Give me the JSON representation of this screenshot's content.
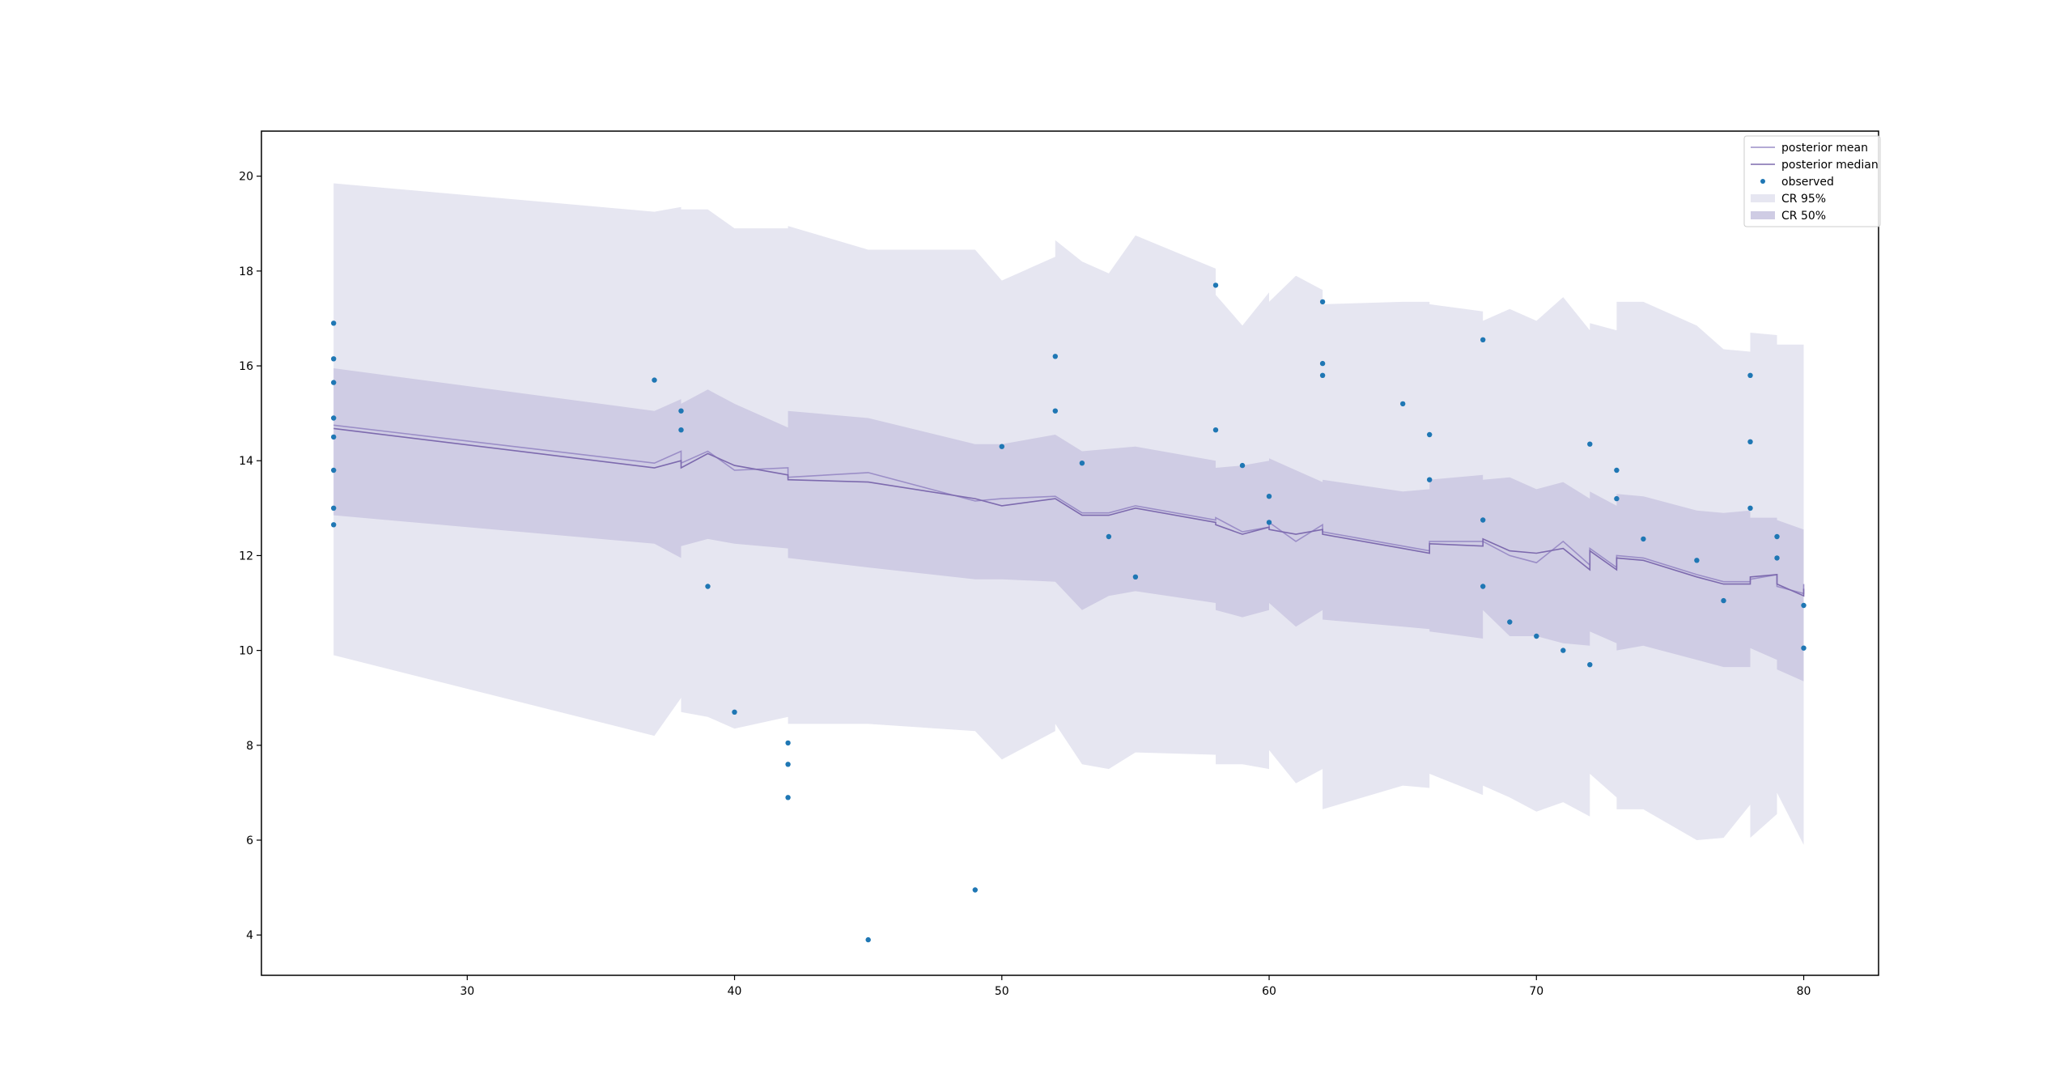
{
  "chart_data": {
    "type": "line",
    "title": "",
    "xlabel": "",
    "ylabel": "",
    "xlim": [
      22.3,
      82.8
    ],
    "ylim": [
      3.15,
      20.95
    ],
    "xticks": [
      30,
      40,
      50,
      60,
      70,
      80
    ],
    "yticks": [
      4,
      6,
      8,
      10,
      12,
      14,
      16,
      18,
      20
    ],
    "grid": false,
    "legend_position": "top-right",
    "colors": {
      "mean": "#9b8ec7",
      "median": "#7d6aae",
      "observed": "#1f77b4",
      "cr95": "#e6e6f1",
      "cr50": "#cfcce4"
    },
    "legend": [
      "posterior mean",
      "posterior median",
      "observed",
      "CR 95%",
      "CR 50%"
    ],
    "series": [
      {
        "name": "posterior mean",
        "x": [
          25,
          37,
          38,
          38,
          39,
          40,
          42,
          42,
          45,
          49,
          50,
          52,
          53,
          54,
          55,
          58,
          58,
          59,
          60,
          60,
          61,
          62,
          62,
          65,
          66,
          66,
          68,
          68,
          69,
          70,
          71,
          72,
          72,
          73,
          73,
          74,
          76,
          77,
          78,
          78,
          79,
          79,
          80,
          80
        ],
        "y": [
          14.75,
          13.95,
          14.2,
          13.95,
          14.2,
          13.8,
          13.85,
          13.65,
          13.75,
          13.15,
          13.2,
          13.25,
          12.9,
          12.9,
          13.05,
          12.75,
          12.8,
          12.5,
          12.6,
          12.7,
          12.3,
          12.65,
          12.5,
          12.2,
          12.1,
          12.3,
          12.3,
          12.3,
          12.0,
          11.85,
          12.3,
          11.8,
          12.15,
          11.75,
          12.0,
          11.95,
          11.6,
          11.45,
          11.45,
          11.5,
          11.6,
          11.35,
          11.2,
          11.4
        ]
      },
      {
        "name": "posterior median",
        "x": [
          25,
          37,
          38,
          38,
          39,
          40,
          42,
          42,
          45,
          49,
          50,
          52,
          53,
          54,
          55,
          58,
          58,
          59,
          60,
          60,
          61,
          62,
          62,
          65,
          66,
          66,
          68,
          68,
          69,
          70,
          71,
          72,
          72,
          73,
          73,
          74,
          76,
          77,
          78,
          78,
          79,
          79,
          80,
          80
        ],
        "y": [
          14.68,
          13.85,
          14.0,
          13.85,
          14.15,
          13.9,
          13.7,
          13.6,
          13.55,
          13.2,
          13.05,
          13.2,
          12.85,
          12.85,
          13.0,
          12.7,
          12.65,
          12.45,
          12.6,
          12.55,
          12.45,
          12.55,
          12.45,
          12.15,
          12.05,
          12.25,
          12.2,
          12.35,
          12.1,
          12.05,
          12.15,
          11.7,
          12.1,
          11.7,
          11.95,
          11.9,
          11.55,
          11.4,
          11.4,
          11.55,
          11.6,
          11.4,
          11.15,
          11.3
        ]
      },
      {
        "name": "observed",
        "x": [
          25,
          25,
          25,
          25,
          25,
          25,
          25,
          25,
          37,
          38,
          38,
          39,
          40,
          42,
          42,
          42,
          45,
          49,
          50,
          52,
          52,
          53,
          54,
          55,
          58,
          58,
          59,
          60,
          60,
          62,
          62,
          62,
          65,
          66,
          66,
          68,
          68,
          68,
          69,
          70,
          71,
          72,
          72,
          73,
          73,
          74,
          76,
          77,
          78,
          78,
          78,
          79,
          79,
          80,
          80
        ],
        "y": [
          16.9,
          16.15,
          15.65,
          14.9,
          14.5,
          13.8,
          13.0,
          12.65,
          15.7,
          15.05,
          14.65,
          11.35,
          8.7,
          8.05,
          7.6,
          6.9,
          3.9,
          4.95,
          14.3,
          16.2,
          15.05,
          13.95,
          12.4,
          11.55,
          17.7,
          14.65,
          13.9,
          13.25,
          12.7,
          17.35,
          16.05,
          15.8,
          15.2,
          14.55,
          13.6,
          16.55,
          12.75,
          11.35,
          10.6,
          10.3,
          10.0,
          9.7,
          14.35,
          13.8,
          13.2,
          12.35,
          11.9,
          11.05,
          15.8,
          14.4,
          13.0,
          12.4,
          11.95,
          10.95,
          10.05
        ]
      }
    ],
    "bands": [
      {
        "name": "CR 95%",
        "x": [
          25,
          37,
          38,
          38,
          39,
          40,
          42,
          42,
          45,
          49,
          50,
          52,
          52,
          53,
          54,
          55,
          58,
          58,
          59,
          60,
          60,
          61,
          62,
          62,
          65,
          66,
          66,
          68,
          68,
          69,
          70,
          71,
          72,
          72,
          73,
          73,
          74,
          76,
          77,
          78,
          78,
          79,
          79,
          80
        ],
        "upper": [
          19.85,
          19.25,
          19.35,
          19.3,
          19.3,
          18.9,
          18.9,
          18.95,
          18.45,
          18.45,
          17.8,
          18.3,
          18.65,
          18.2,
          17.95,
          18.75,
          18.05,
          17.5,
          16.85,
          17.55,
          17.35,
          17.9,
          17.6,
          17.3,
          17.35,
          17.35,
          17.3,
          17.15,
          16.95,
          17.2,
          16.95,
          17.45,
          16.75,
          16.9,
          16.75,
          17.35,
          17.35,
          16.85,
          16.35,
          16.3,
          16.7,
          16.65,
          16.45,
          16.45
        ],
        "lower": [
          9.9,
          8.2,
          9.0,
          8.7,
          8.6,
          8.35,
          8.6,
          8.45,
          8.45,
          8.3,
          7.7,
          8.3,
          8.45,
          7.6,
          7.5,
          7.85,
          7.8,
          7.6,
          7.6,
          7.5,
          7.9,
          7.2,
          7.5,
          6.65,
          7.15,
          7.1,
          7.4,
          6.95,
          7.15,
          6.9,
          6.6,
          6.8,
          6.5,
          7.4,
          6.9,
          6.65,
          6.65,
          6.0,
          6.05,
          6.75,
          6.05,
          6.55,
          7.0,
          5.9
        ]
      },
      {
        "name": "CR 50%",
        "x": [
          25,
          37,
          38,
          38,
          39,
          40,
          42,
          42,
          45,
          49,
          50,
          52,
          53,
          54,
          55,
          58,
          58,
          59,
          60,
          60,
          61,
          62,
          62,
          65,
          66,
          66,
          68,
          68,
          69,
          70,
          71,
          72,
          72,
          73,
          73,
          74,
          76,
          77,
          78,
          78,
          79,
          79,
          80
        ],
        "upper": [
          15.95,
          15.05,
          15.3,
          15.2,
          15.5,
          15.2,
          14.7,
          15.05,
          14.9,
          14.35,
          14.35,
          14.55,
          14.2,
          14.25,
          14.3,
          14.0,
          13.85,
          13.9,
          14.0,
          14.05,
          13.8,
          13.55,
          13.6,
          13.35,
          13.4,
          13.6,
          13.7,
          13.6,
          13.65,
          13.4,
          13.55,
          13.2,
          13.35,
          13.05,
          13.3,
          13.25,
          12.95,
          12.9,
          12.95,
          12.8,
          12.8,
          12.75,
          12.55
        ],
        "lower": [
          12.85,
          12.25,
          11.95,
          12.2,
          12.35,
          12.25,
          12.15,
          11.95,
          11.75,
          11.5,
          11.5,
          11.45,
          10.85,
          11.15,
          11.25,
          11.0,
          10.85,
          10.7,
          10.85,
          11.0,
          10.5,
          10.85,
          10.65,
          10.5,
          10.45,
          10.4,
          10.25,
          10.85,
          10.3,
          10.3,
          10.15,
          10.1,
          10.4,
          10.15,
          10.0,
          10.1,
          9.8,
          9.65,
          9.65,
          10.05,
          9.8,
          9.6,
          9.35
        ]
      }
    ]
  }
}
